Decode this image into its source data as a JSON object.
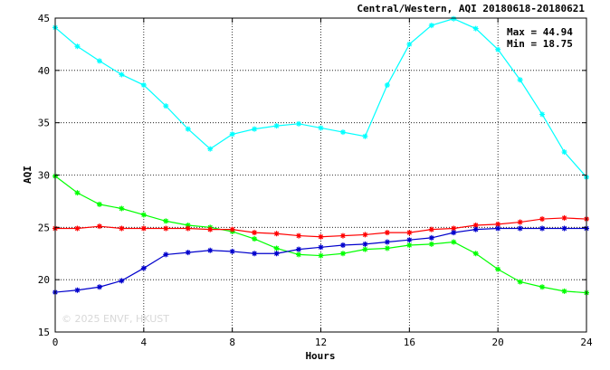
{
  "watermark": "© 2025  ENVF, HKUST",
  "chart_data": {
    "type": "line",
    "title": "Central/Western, AQI 20180618-20180621",
    "xlabel": "Hours",
    "ylabel": "AQI",
    "xlim": [
      0,
      24
    ],
    "ylim": [
      15,
      45
    ],
    "xticks": [
      0,
      4,
      8,
      12,
      16,
      20,
      24
    ],
    "yticks": [
      15,
      20,
      25,
      30,
      35,
      40,
      45
    ],
    "grid": true,
    "legend": "none",
    "stats": {
      "max_label": "Max = 44.94",
      "min_label": "Min = 18.75"
    },
    "x": [
      0,
      1,
      2,
      3,
      4,
      5,
      6,
      7,
      8,
      9,
      10,
      11,
      12,
      13,
      14,
      15,
      16,
      17,
      18,
      19,
      20,
      21,
      22,
      23,
      24
    ],
    "series": [
      {
        "color": "#00ffff",
        "values": [
          44.1,
          42.3,
          40.9,
          39.6,
          38.6,
          36.6,
          34.4,
          32.5,
          33.9,
          34.4,
          34.7,
          34.9,
          34.5,
          34.1,
          33.7,
          38.6,
          42.5,
          44.3,
          44.94,
          44.0,
          42.0,
          39.1,
          35.8,
          32.2,
          29.8
        ]
      },
      {
        "color": "#00ff00",
        "values": [
          29.9,
          28.3,
          27.2,
          26.8,
          26.2,
          25.6,
          25.2,
          25.0,
          24.6,
          23.9,
          23.0,
          22.4,
          22.3,
          22.5,
          22.9,
          23.0,
          23.3,
          23.4,
          23.6,
          22.5,
          21.0,
          19.8,
          19.3,
          18.9,
          18.75
        ]
      },
      {
        "color": "#ff0000",
        "values": [
          24.9,
          24.9,
          25.1,
          24.9,
          24.9,
          24.9,
          24.9,
          24.8,
          24.8,
          24.5,
          24.4,
          24.2,
          24.1,
          24.2,
          24.3,
          24.5,
          24.5,
          24.8,
          24.9,
          25.2,
          25.3,
          25.5,
          25.8,
          25.9,
          25.8
        ]
      },
      {
        "color": "#0000cc",
        "values": [
          18.8,
          19.0,
          19.3,
          19.9,
          21.1,
          22.4,
          22.6,
          22.8,
          22.7,
          22.5,
          22.5,
          22.9,
          23.1,
          23.3,
          23.4,
          23.6,
          23.8,
          24.0,
          24.5,
          24.8,
          24.9,
          24.9,
          24.9,
          24.9,
          24.9
        ]
      }
    ]
  }
}
